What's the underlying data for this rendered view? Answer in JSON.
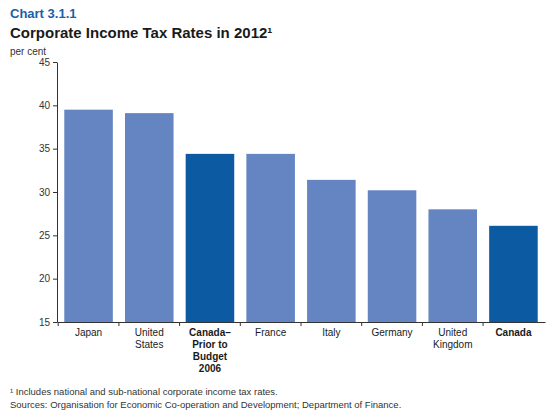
{
  "chart_data": {
    "type": "bar",
    "chart_number": "Chart 3.1.1",
    "title": "Corporate Income Tax Rates in 2012¹",
    "ylabel": "per cent",
    "categories": [
      "Japan",
      "United States",
      "Canada–Prior to Budget 2006",
      "France",
      "Italy",
      "Germany",
      "United Kingdom",
      "Canada"
    ],
    "values": [
      39.5,
      39.1,
      34.4,
      34.4,
      31.4,
      30.2,
      28.0,
      26.1
    ],
    "colors": [
      "#6585c2",
      "#6585c2",
      "#0b5aa2",
      "#6585c2",
      "#6585c2",
      "#6585c2",
      "#6585c2",
      "#0b5aa2"
    ],
    "ylim": [
      15,
      45
    ],
    "yticks": [
      15,
      20,
      25,
      30,
      35,
      40,
      45
    ],
    "grid": false,
    "footnotes": [
      "¹ Includes national and sub-national corporate income tax rates.",
      "Sources: Organisation for Economic Co-operation and Development; Department of Finance."
    ]
  }
}
